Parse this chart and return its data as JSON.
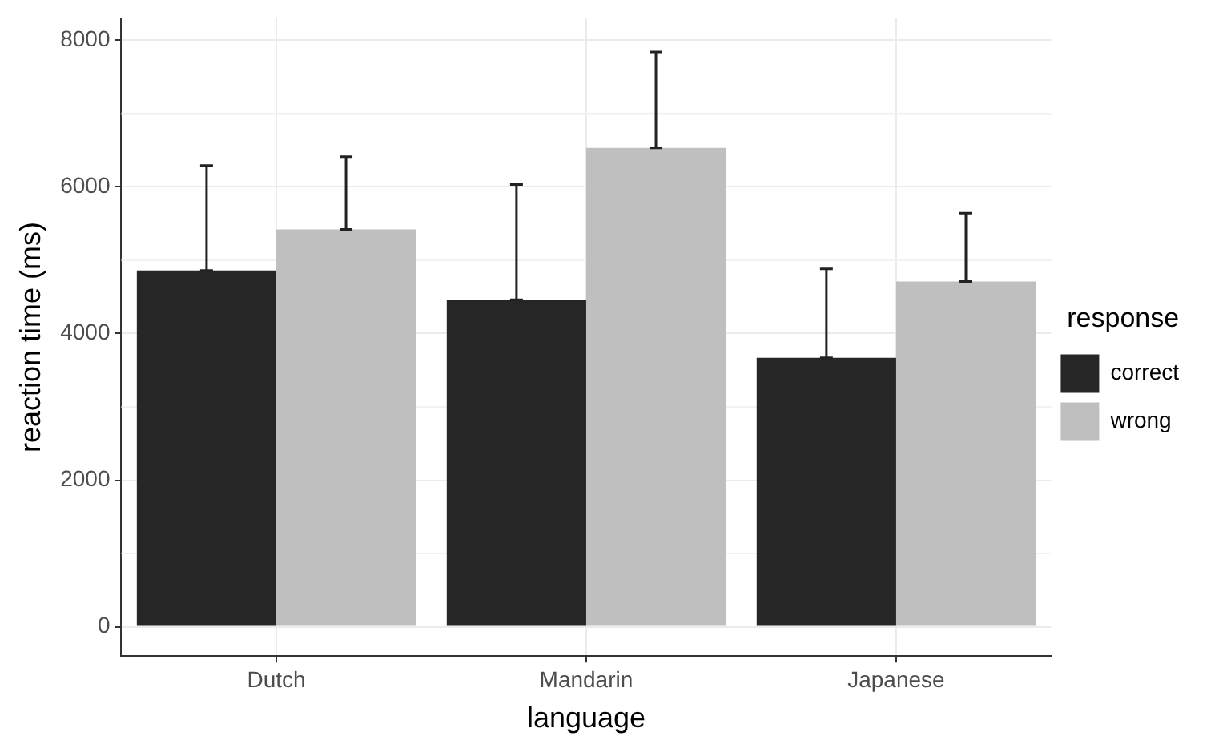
{
  "chart_data": {
    "type": "bar",
    "xlabel": "language",
    "ylabel": "reaction time (ms)",
    "legend_title": "response",
    "categories": [
      "Dutch",
      "Mandarin",
      "Japanese"
    ],
    "series": [
      {
        "name": "correct",
        "color": "#262626",
        "values": [
          4860,
          4460,
          3670
        ],
        "errors": [
          [
            4860,
            6290
          ],
          [
            4460,
            6030
          ],
          [
            3670,
            4880
          ]
        ]
      },
      {
        "name": "wrong",
        "color": "#bfbfbf",
        "values": [
          5420,
          6530,
          4710
        ],
        "errors": [
          [
            5420,
            6410
          ],
          [
            6530,
            7840
          ],
          [
            4710,
            5640
          ]
        ]
      }
    ],
    "ylim": [
      -400,
      8300
    ],
    "yticks": [
      0,
      2000,
      4000,
      6000,
      8000
    ],
    "grid": true,
    "legend": "right"
  }
}
